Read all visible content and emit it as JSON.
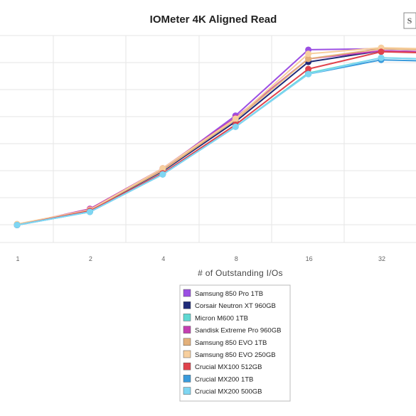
{
  "chart_data": {
    "type": "line",
    "title": "IOMeter 4K Aligned Read",
    "xlabel": "# of Outstanding I/Os",
    "ylabel": "",
    "categories": [
      "1",
      "2",
      "4",
      "8",
      "16",
      "32"
    ],
    "ylim": [
      0,
      100
    ],
    "grid": true,
    "legend_position": "bottom",
    "series": [
      {
        "name": "Samsung 850 Pro 1TB",
        "color": "#9b4fe3",
        "values": [
          6.5,
          14,
          34,
          60.5,
          93,
          93.5
        ]
      },
      {
        "name": "Corsair Neutron XT 960GB",
        "color": "#1e2a78",
        "values": [
          6.5,
          14,
          33,
          57.5,
          87,
          92.5
        ]
      },
      {
        "name": "Micron M600 1TB",
        "color": "#5fd8d2",
        "values": [
          6.5,
          13,
          31.5,
          55,
          81.5,
          89
        ]
      },
      {
        "name": "Sandisk Extreme Pro 960GB",
        "color": "#c43fb2",
        "values": [
          6.5,
          14.5,
          34.5,
          59.5,
          88.5,
          92.5
        ]
      },
      {
        "name": "Samsung 850 EVO 1TB",
        "color": "#e3b07a",
        "values": [
          6.5,
          14,
          33.5,
          58.5,
          88.5,
          93.5
        ]
      },
      {
        "name": "Samsung 850 EVO 250GB",
        "color": "#f7cf9e",
        "values": [
          7,
          14,
          34.5,
          59,
          91,
          94
        ]
      },
      {
        "name": "Crucial MX100 512GB",
        "color": "#e0434c",
        "values": [
          6.5,
          13.5,
          32,
          56,
          83.5,
          92
        ]
      },
      {
        "name": "Crucial MX200 1TB",
        "color": "#3a9bdc",
        "values": [
          6.5,
          13,
          31.5,
          55,
          81,
          88
        ]
      },
      {
        "name": "Crucial MX200 500GB",
        "color": "#7fd6f2",
        "values": [
          6.5,
          13,
          31.5,
          55,
          81,
          89
        ]
      }
    ]
  }
}
